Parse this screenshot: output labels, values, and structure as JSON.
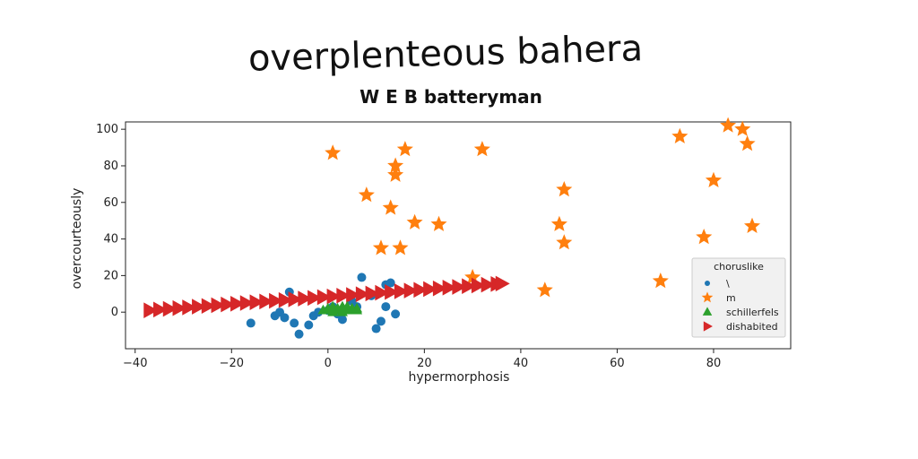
{
  "chart_data": {
    "type": "scatter",
    "title": "overplenteous bahera",
    "subtitle": "W E B batteryman",
    "xlabel": "hypermorphosis",
    "ylabel": "overcourteously",
    "xlim": [
      -42,
      96
    ],
    "ylim": [
      -20,
      104
    ],
    "xticks": [
      -40,
      -20,
      0,
      20,
      40,
      60,
      80
    ],
    "yticks": [
      0,
      20,
      40,
      60,
      80,
      100
    ],
    "xtick_labels": [
      "−40",
      "−20",
      "0",
      "20",
      "40",
      "60",
      "80"
    ],
    "ytick_labels": [
      "0",
      "20",
      "40",
      "60",
      "80",
      "100"
    ],
    "grid": false,
    "legend": {
      "title": "choruslike",
      "placement": "lower-right",
      "entries": [
        "\\",
        "m",
        "schillerfels",
        "dishabited"
      ]
    },
    "series": [
      {
        "name": "\\",
        "marker": "circle",
        "color": "#1f77b4",
        "points": [
          [
            -16,
            -6
          ],
          [
            -11,
            -2
          ],
          [
            -10,
            0
          ],
          [
            -9,
            -3
          ],
          [
            -8,
            11
          ],
          [
            -7,
            -6
          ],
          [
            -6,
            -12
          ],
          [
            -4,
            -7
          ],
          [
            -3,
            -2
          ],
          [
            -2,
            0
          ],
          [
            0,
            1
          ],
          [
            1,
            3
          ],
          [
            2,
            -1
          ],
          [
            3,
            -4
          ],
          [
            5,
            6
          ],
          [
            6,
            3
          ],
          [
            7,
            19
          ],
          [
            9,
            9
          ],
          [
            10,
            -9
          ],
          [
            11,
            -5
          ],
          [
            12,
            3
          ],
          [
            12,
            15
          ],
          [
            13,
            16
          ],
          [
            14,
            -1
          ]
        ]
      },
      {
        "name": "m",
        "marker": "star",
        "color": "#ff7f0e",
        "points": [
          [
            1,
            87
          ],
          [
            8,
            64
          ],
          [
            11,
            35
          ],
          [
            13,
            57
          ],
          [
            14,
            80
          ],
          [
            14,
            75
          ],
          [
            15,
            35
          ],
          [
            16,
            89
          ],
          [
            18,
            49
          ],
          [
            23,
            48
          ],
          [
            30,
            19
          ],
          [
            32,
            89
          ],
          [
            45,
            12
          ],
          [
            48,
            48
          ],
          [
            49,
            67
          ],
          [
            49,
            38
          ],
          [
            69,
            17
          ],
          [
            73,
            96
          ],
          [
            78,
            41
          ],
          [
            80,
            72
          ],
          [
            83,
            102
          ],
          [
            86,
            100
          ],
          [
            87,
            92
          ],
          [
            88,
            47
          ]
        ]
      },
      {
        "name": "schillerfels",
        "marker": "triangle-up",
        "color": "#2ca02c",
        "points": [
          [
            -1,
            1
          ],
          [
            0,
            1
          ],
          [
            0,
            2
          ],
          [
            1,
            0
          ],
          [
            1,
            3
          ],
          [
            2,
            1
          ],
          [
            2,
            2
          ],
          [
            3,
            0
          ],
          [
            3,
            2
          ],
          [
            4,
            1
          ],
          [
            4,
            3
          ],
          [
            5,
            1
          ],
          [
            5,
            2
          ],
          [
            6,
            1
          ],
          [
            6,
            2
          ],
          [
            1,
            1
          ],
          [
            3,
            3
          ]
        ]
      },
      {
        "name": "dishabited",
        "marker": "triangle-right",
        "color": "#d62728",
        "points": [
          [
            -37,
            1
          ],
          [
            -35,
            1.4
          ],
          [
            -33,
            1.8
          ],
          [
            -31,
            2.2
          ],
          [
            -29,
            2.6
          ],
          [
            -27,
            3
          ],
          [
            -25,
            3.4
          ],
          [
            -23,
            3.8
          ],
          [
            -21,
            4.2
          ],
          [
            -19,
            4.6
          ],
          [
            -17,
            5
          ],
          [
            -15,
            5.4
          ],
          [
            -13,
            5.8
          ],
          [
            -11,
            6.2
          ],
          [
            -9,
            6.6
          ],
          [
            -7,
            7
          ],
          [
            -5,
            7.4
          ],
          [
            -3,
            7.8
          ],
          [
            -1,
            8.2
          ],
          [
            1,
            8.6
          ],
          [
            3,
            9
          ],
          [
            5,
            9.4
          ],
          [
            7,
            9.8
          ],
          [
            9,
            10.2
          ],
          [
            11,
            10.6
          ],
          [
            13,
            11
          ],
          [
            15,
            11.4
          ],
          [
            17,
            11.8
          ],
          [
            19,
            12.2
          ],
          [
            21,
            12.6
          ],
          [
            23,
            13
          ],
          [
            25,
            13.4
          ],
          [
            27,
            13.8
          ],
          [
            29,
            14.2
          ],
          [
            31,
            14.6
          ],
          [
            33,
            15
          ],
          [
            35,
            15.4
          ],
          [
            36,
            15.6
          ]
        ]
      }
    ]
  }
}
